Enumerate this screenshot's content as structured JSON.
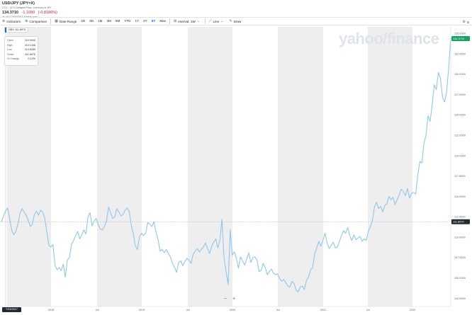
{
  "header": {
    "title": "USD/JPY (JPY=X)",
    "subtitle": "CCY - CCY Delayed Price. Currency in JPY",
    "price": "134.3710",
    "change": "-1.1090",
    "change_pct": "(-0.8186%)",
    "as_of": "As of 11:26AM BST. Market open."
  },
  "toolbar": {
    "indicators": "Indicators",
    "comparison": "Comparison",
    "date_range": "Date Range",
    "ranges": [
      "1D",
      "5D",
      "1M",
      "3M",
      "6M",
      "YTD",
      "1Y",
      "2Y",
      "5Y",
      "Max"
    ],
    "active_range": "5Y",
    "interval_label": "Interval",
    "interval_value": "1W",
    "chart_type": "Line",
    "draw": "Draw",
    "settings_label": "S"
  },
  "legend_chip": {
    "symbol": "OBV",
    "value": "111.8970"
  },
  "tooltip": {
    "rows": [
      {
        "k": "Open",
        "v": "110.9440"
      },
      {
        "k": "High",
        "v": "112.1436"
      },
      {
        "k": "Low",
        "v": "110.6280"
      },
      {
        "k": "Close",
        "v": "111.8970"
      },
      {
        "k": "% Change",
        "v": "0.13%"
      }
    ]
  },
  "watermark": "yahoo/finance",
  "zoom": {
    "minus": "−",
    "plus": "+"
  },
  "date_badge": "7/23/2017",
  "colors": {
    "line": "#8ec7ec",
    "band": "#eeeeee",
    "current_badge": "#11a55e",
    "hover_badge": "#232a31",
    "negative": "#eb0f29"
  },
  "chart_data": {
    "type": "line",
    "x_labels": [
      "2018",
      "Jul",
      "2019",
      "Jul",
      "2020",
      "Jul",
      "2021",
      "Jul",
      "2022"
    ],
    "y_ticks": [
      "135.0000",
      "132.5000",
      "130.0000",
      "127.5000",
      "125.0000",
      "122.5000",
      "120.0000",
      "117.5000",
      "115.0000",
      "112.5000",
      "110.0000",
      "107.5000",
      "105.0000",
      "102.5000"
    ],
    "ylim": [
      101.5,
      135.8
    ],
    "current_value": "134.3710",
    "hover_value": "111.8970",
    "series": [
      {
        "values": [
          111.9,
          112.6,
          113.2,
          113.6,
          112.3,
          110.9,
          110.3,
          110.7,
          111.6,
          112.9,
          113.5,
          113.1,
          112.7,
          112.1,
          111.3,
          111.6,
          112.8,
          113.2,
          112.7,
          113.3,
          113.1,
          112.4,
          110.7,
          109.0,
          108.8,
          109.1,
          106.6,
          106.0,
          106.3,
          105.9,
          106.7,
          105.1,
          107.2,
          107.5,
          109.1,
          109.6,
          110.2,
          110.7,
          109.8,
          110.3,
          110.9,
          110.4,
          112.5,
          113.0,
          111.4,
          112.0,
          112.3,
          111.5,
          111.0,
          110.9,
          111.3,
          112.0,
          113.7,
          113.0,
          112.3,
          112.5,
          113.5,
          113.1,
          112.6,
          112.8,
          113.3,
          113.6,
          113.2,
          111.5,
          110.4,
          108.9,
          108.5,
          110.1,
          110.5,
          110.2,
          110.5,
          111.8,
          111.6,
          111.3,
          111.9,
          110.6,
          109.7,
          108.3,
          108.5,
          108.1,
          108.5,
          108.0,
          107.6,
          106.8,
          106.3,
          105.7,
          106.9,
          107.1,
          106.5,
          107.0,
          107.4,
          107.2,
          106.8,
          107.9,
          108.3,
          108.6,
          108.2,
          108.5,
          108.8,
          109.3,
          108.6,
          108.0,
          108.9,
          109.4,
          109.8,
          108.7,
          109.6,
          112.2,
          107.5,
          105.8,
          104.2,
          110.9,
          107.8,
          108.2,
          107.4,
          106.2,
          107.6,
          107.1,
          106.6,
          107.3,
          108.1,
          106.9,
          107.5,
          107.6,
          107.2,
          105.8,
          105.9,
          106.8,
          106.3,
          105.4,
          105.8,
          106.1,
          105.6,
          105.4,
          105.5,
          104.9,
          104.6,
          104.8,
          104.4,
          104.0,
          103.9,
          104.6,
          104.3,
          103.5,
          103.3,
          103.9,
          104.0,
          103.6,
          104.7,
          105.1,
          106.0,
          106.3,
          108.0,
          108.7,
          109.5,
          108.9,
          109.6,
          110.5,
          109.3,
          108.6,
          109.0,
          109.4,
          108.7,
          108.8,
          109.5,
          110.2,
          110.8,
          110.5,
          111.2,
          110.2,
          109.6,
          110.3,
          109.7,
          109.9,
          110.1,
          109.5,
          109.8,
          109.6,
          110.7,
          111.3,
          112.0,
          113.7,
          114.3,
          113.5,
          113.8,
          113.1,
          113.9,
          114.1,
          115.0,
          114.6,
          114.9,
          114.0,
          114.6,
          115.2,
          115.9,
          115.6,
          115.1,
          116.0,
          114.8,
          115.4,
          115.5,
          115.3,
          117.6,
          119.3,
          119.1,
          121.5,
          122.5,
          124.9,
          124.2,
          126.3,
          128.7,
          128.1,
          130.2,
          129.5,
          127.2,
          126.6,
          127.8,
          130.8,
          134.4
        ]
      }
    ]
  }
}
